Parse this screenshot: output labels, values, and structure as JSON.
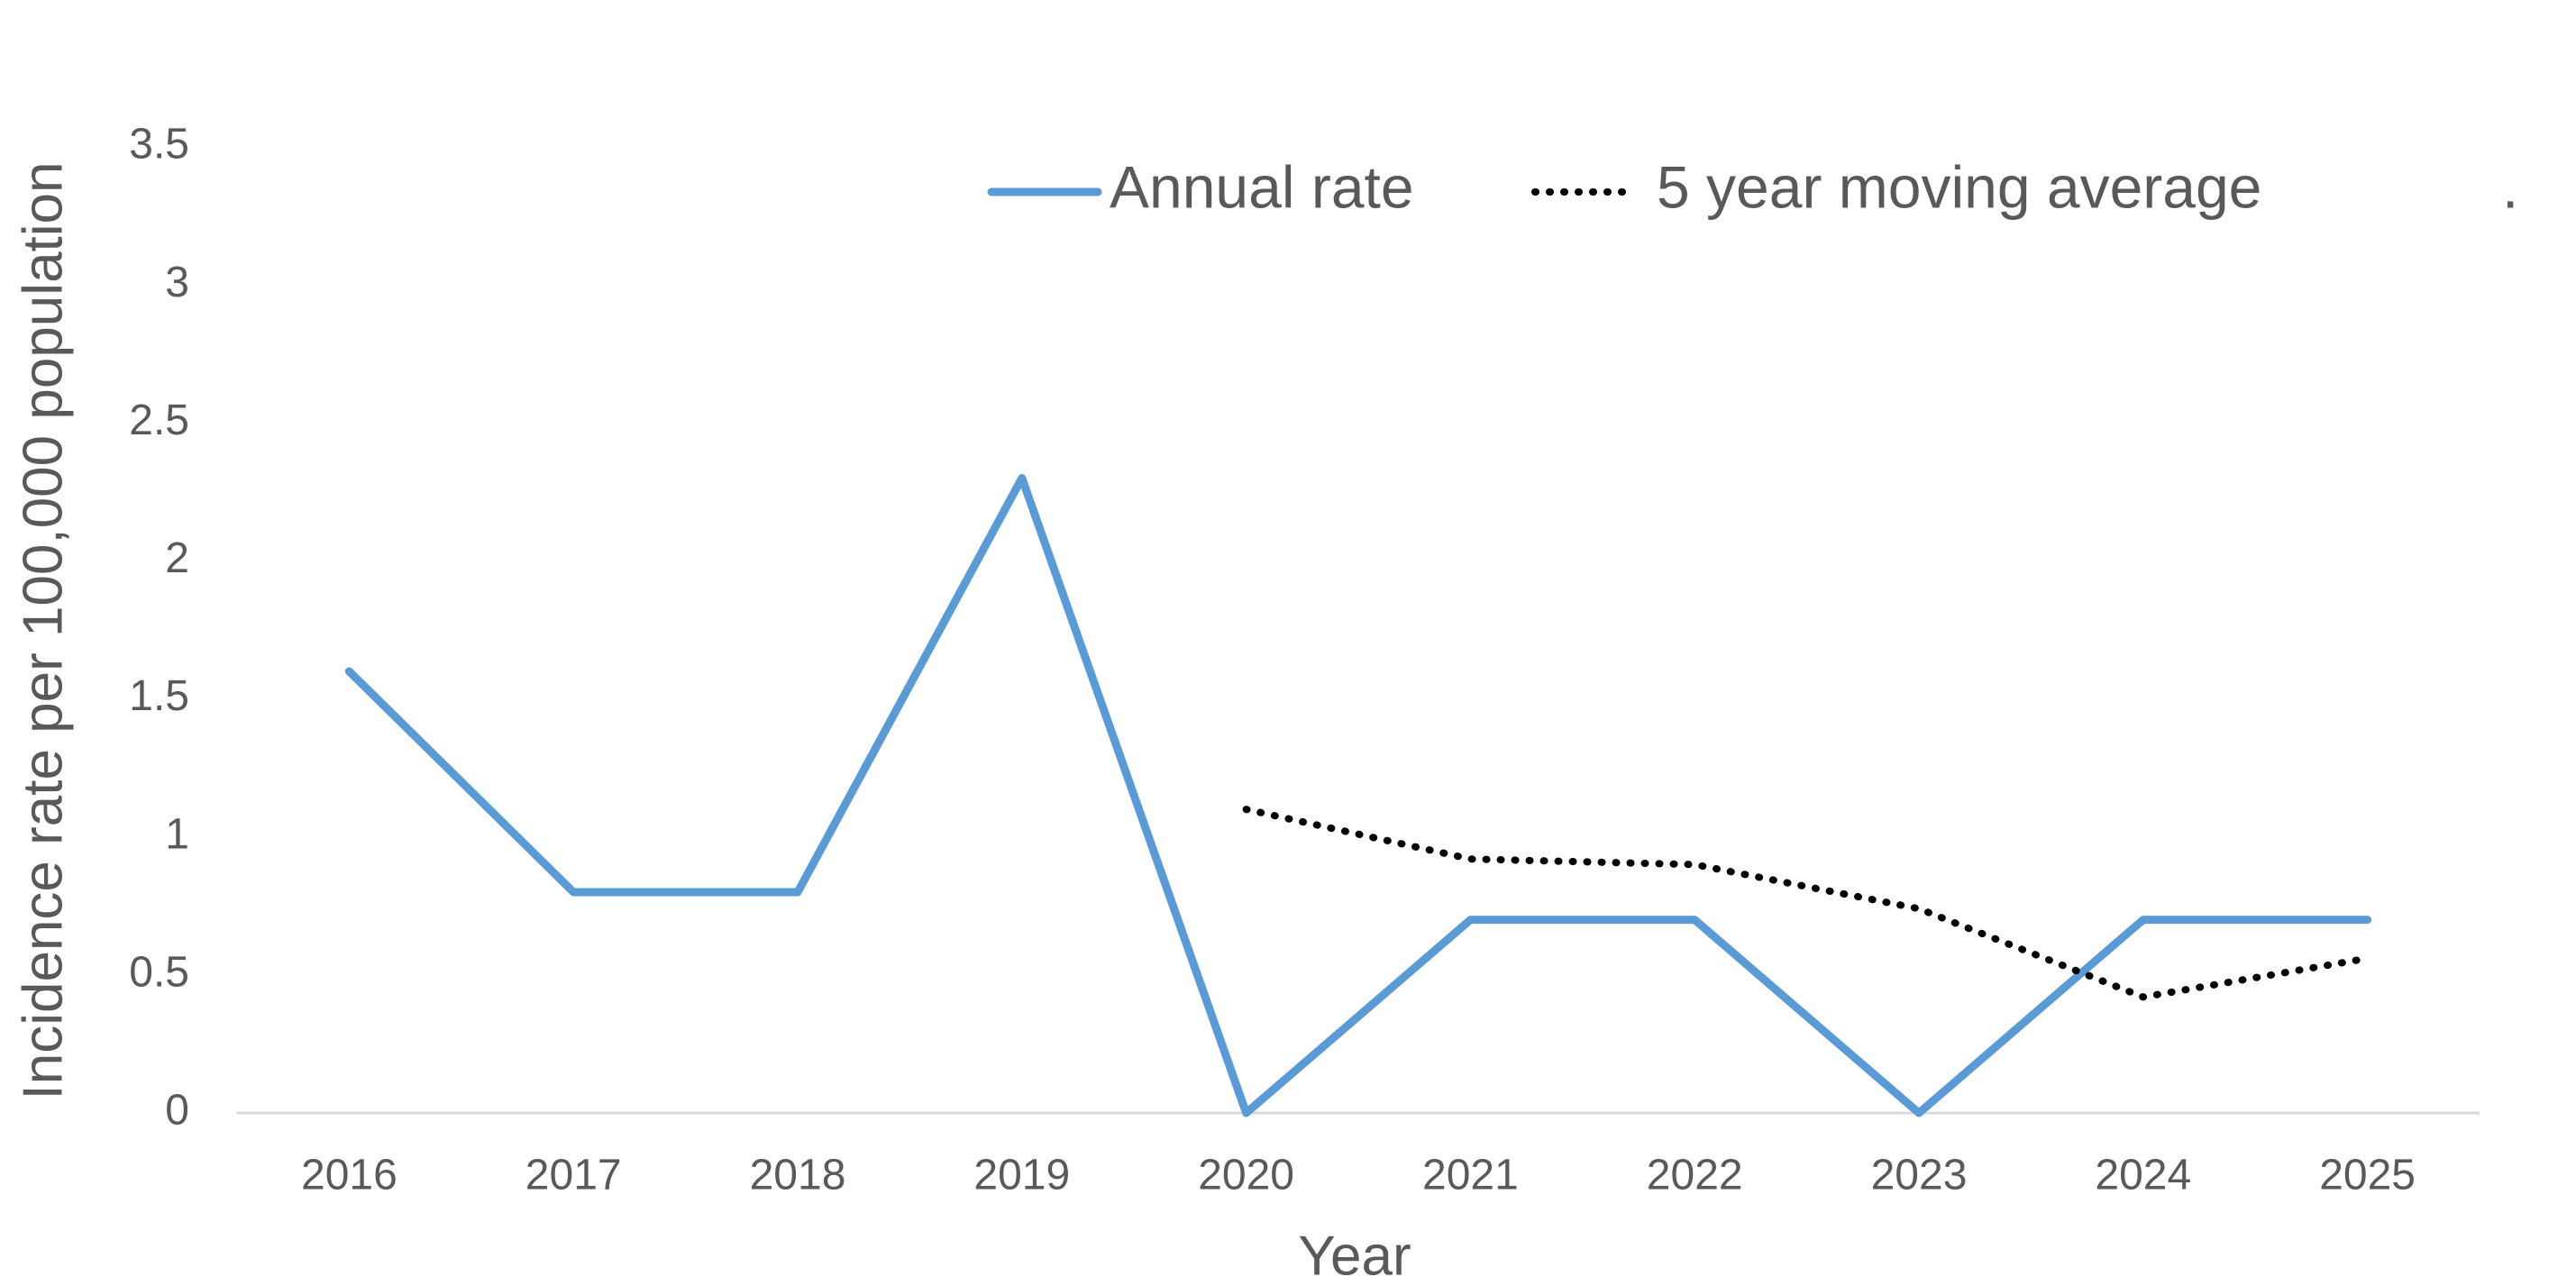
{
  "chart_data": {
    "type": "line",
    "x_label": "Year",
    "y_label": "Incidence rate per 100,000 population",
    "categories": [
      "2016",
      "2017",
      "2018",
      "2019",
      "2020",
      "2021",
      "2022",
      "2023",
      "2024",
      "2025"
    ],
    "series": [
      {
        "name": "Annual rate",
        "color": "#5b9bd5",
        "style": "solid",
        "values": [
          1.6,
          0.8,
          0.8,
          2.3,
          0,
          0.7,
          0.7,
          0,
          0.7,
          0.7
        ]
      },
      {
        "name": "5 year moving average",
        "color": "#000000",
        "style": "dotted",
        "values": [
          null,
          null,
          null,
          null,
          1.1,
          0.92,
          0.9,
          0.74,
          0.42,
          0.56
        ]
      },
      {
        "name": ".",
        "color": "#ffffff",
        "style": "none",
        "values": [
          null,
          null,
          null,
          null,
          null,
          null,
          null,
          null,
          null,
          null
        ]
      }
    ],
    "ylim": [
      0,
      3.5
    ],
    "yticks": [
      0,
      0.5,
      1,
      1.5,
      2,
      2.5,
      3,
      3.5
    ],
    "grid": false,
    "legend": "top"
  }
}
